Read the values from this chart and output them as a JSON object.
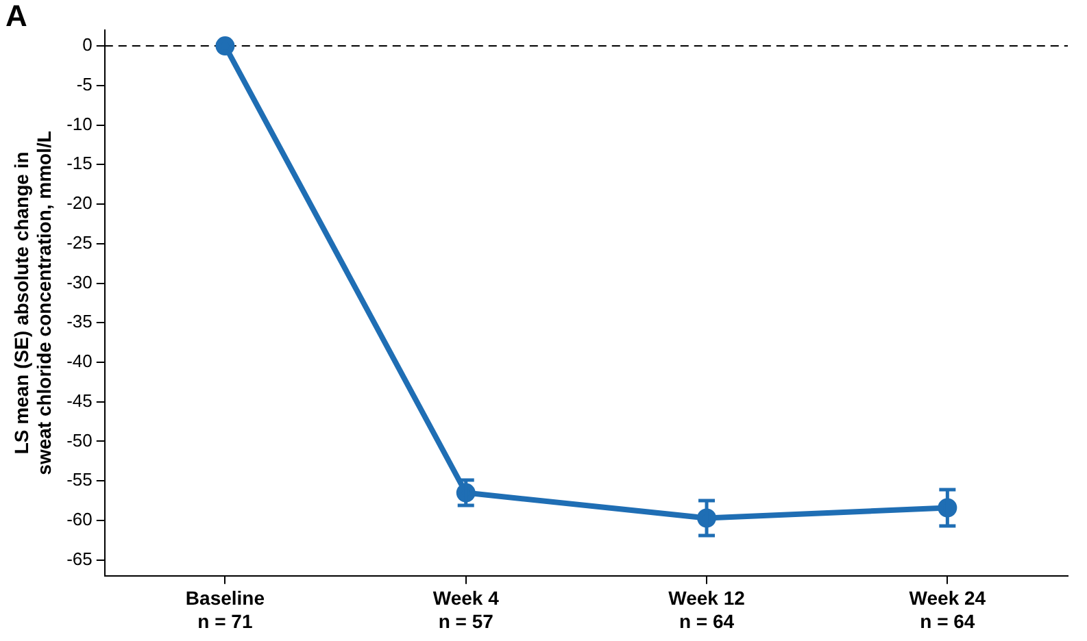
{
  "chart_data": {
    "type": "line",
    "ylabel": "LS mean (SE) absolute change in\nsweat chloride concentration, mmol/L",
    "annotations": [
      "A"
    ],
    "categories": [
      "Baseline\nn = 71",
      "Week 4\nn = 57",
      "Week 12\nn = 64",
      "Week 24\nn = 64"
    ],
    "ylim": [
      -67,
      2
    ],
    "yticks": [
      0,
      -5,
      -10,
      -15,
      -20,
      -25,
      -30,
      -35,
      -40,
      -45,
      -50,
      -55,
      -60,
      -65
    ],
    "series": [
      {
        "color": "#1f6eb4",
        "values": [
          0,
          -56.5,
          -59.7,
          -58.4
        ],
        "errors": [
          null,
          1.6,
          2.2,
          2.3
        ]
      }
    ],
    "ref_lines": [
      {
        "axis": "y",
        "value": 0,
        "color": "#000000",
        "line_style": "dashed"
      }
    ],
    "marker": "circle",
    "line_style": "solid",
    "grid": false,
    "legend": false
  }
}
